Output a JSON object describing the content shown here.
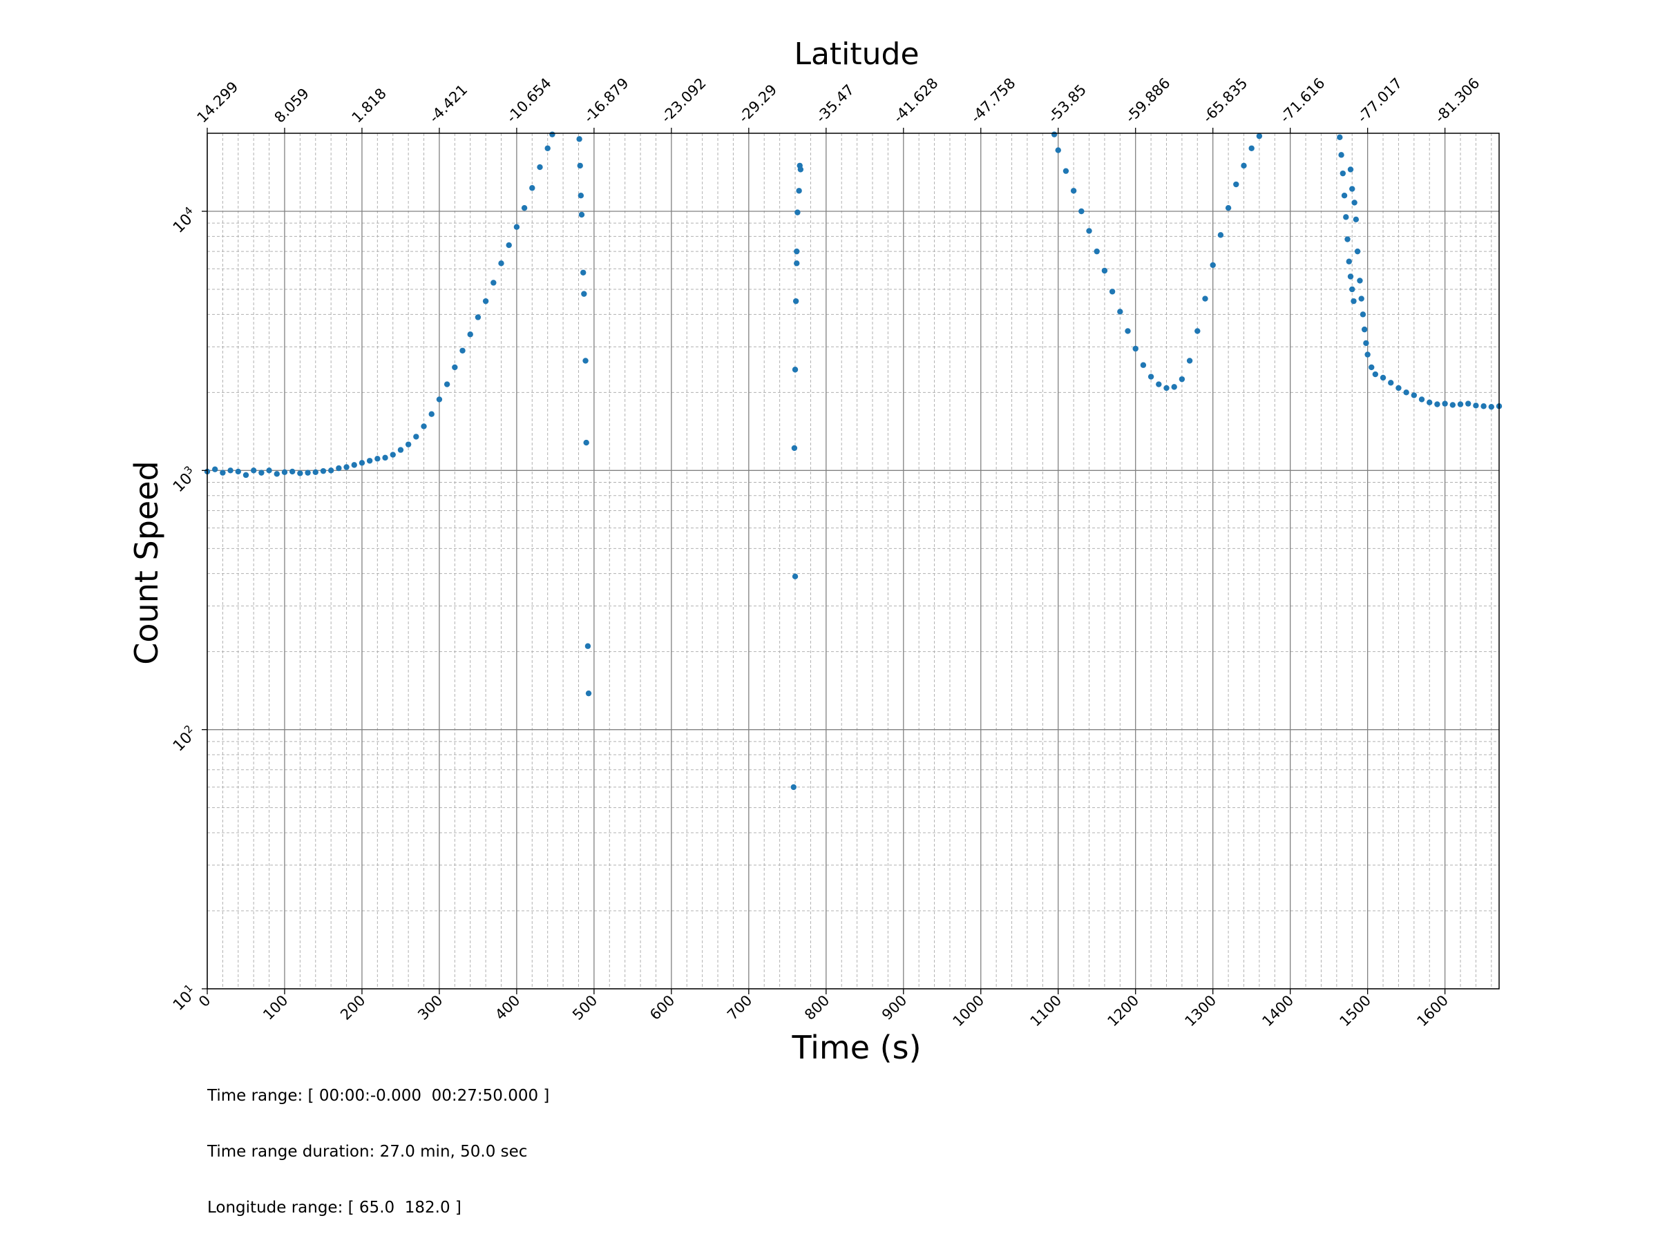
{
  "chart_data": {
    "type": "scatter",
    "title": "",
    "xlabel": "Time (s)",
    "ylabel": "Count Speed",
    "top_xlabel": "Latitude",
    "xlim": [
      0,
      1670
    ],
    "ylim": [
      10,
      20000
    ],
    "yscale": "log",
    "grid": true,
    "marker_color": "#1f77b4",
    "x_ticks": [
      0,
      100,
      200,
      300,
      400,
      500,
      600,
      700,
      800,
      900,
      1000,
      1100,
      1200,
      1300,
      1400,
      1500,
      1600
    ],
    "x_tick_labels": [
      "0",
      "100",
      "200",
      "300",
      "400",
      "500",
      "600",
      "700",
      "800",
      "900",
      "1000",
      "1100",
      "1200",
      "1300",
      "1400",
      "1500",
      "1600"
    ],
    "y_ticks": [
      10,
      100,
      1000,
      10000
    ],
    "y_tick_labels": [
      {
        "base": "10",
        "exp": "1"
      },
      {
        "base": "10",
        "exp": "2"
      },
      {
        "base": "10",
        "exp": "3"
      },
      {
        "base": "10",
        "exp": "4"
      }
    ],
    "top_ticks": [
      {
        "x": 0,
        "label": "14.299"
      },
      {
        "x": 100,
        "label": "8.059"
      },
      {
        "x": 200,
        "label": "1.818"
      },
      {
        "x": 300,
        "label": "-4.421"
      },
      {
        "x": 400,
        "label": "-10.654"
      },
      {
        "x": 500,
        "label": "-16.879"
      },
      {
        "x": 600,
        "label": "-23.092"
      },
      {
        "x": 700,
        "label": "-29.29"
      },
      {
        "x": 800,
        "label": "-35.47"
      },
      {
        "x": 900,
        "label": "-41.628"
      },
      {
        "x": 1000,
        "label": "-47.758"
      },
      {
        "x": 1100,
        "label": "-53.85"
      },
      {
        "x": 1200,
        "label": "-59.886"
      },
      {
        "x": 1300,
        "label": "-65.835"
      },
      {
        "x": 1400,
        "label": "-71.616"
      },
      {
        "x": 1500,
        "label": "-77.017"
      },
      {
        "x": 1600,
        "label": "-81.306"
      }
    ],
    "series": [
      {
        "points": [
          [
            0,
            990
          ],
          [
            10,
            1010
          ],
          [
            20,
            980
          ],
          [
            30,
            1000
          ],
          [
            40,
            990
          ],
          [
            50,
            960
          ],
          [
            60,
            1000
          ],
          [
            70,
            980
          ],
          [
            80,
            1000
          ],
          [
            90,
            970
          ],
          [
            100,
            985
          ],
          [
            110,
            990
          ],
          [
            120,
            975
          ],
          [
            130,
            980
          ],
          [
            140,
            985
          ],
          [
            150,
            995
          ],
          [
            160,
            1000
          ],
          [
            170,
            1020
          ],
          [
            180,
            1030
          ],
          [
            190,
            1050
          ],
          [
            200,
            1070
          ],
          [
            210,
            1090
          ],
          [
            220,
            1110
          ],
          [
            230,
            1120
          ],
          [
            240,
            1150
          ],
          [
            250,
            1200
          ],
          [
            260,
            1260
          ],
          [
            270,
            1350
          ],
          [
            280,
            1480
          ],
          [
            290,
            1650
          ],
          [
            300,
            1880
          ],
          [
            310,
            2150
          ],
          [
            320,
            2500
          ],
          [
            330,
            2900
          ],
          [
            340,
            3350
          ],
          [
            350,
            3900
          ],
          [
            360,
            4500
          ],
          [
            370,
            5300
          ],
          [
            380,
            6300
          ],
          [
            390,
            7400
          ],
          [
            400,
            8700
          ],
          [
            410,
            10300
          ],
          [
            420,
            12300
          ],
          [
            430,
            14800
          ],
          [
            440,
            17500
          ],
          [
            446,
            19800
          ],
          [
            481,
            19000
          ],
          [
            482,
            15000
          ],
          [
            483,
            11500
          ],
          [
            484,
            9700
          ],
          [
            486,
            5800
          ],
          [
            487,
            4800
          ],
          [
            489,
            2650
          ],
          [
            490,
            1280
          ],
          [
            492,
            210
          ],
          [
            493,
            138
          ],
          [
            759,
            1220
          ],
          [
            760,
            2450
          ],
          [
            761,
            4500
          ],
          [
            762,
            6300
          ],
          [
            762,
            7000
          ],
          [
            763,
            9900
          ],
          [
            765,
            12000
          ],
          [
            766,
            15000
          ],
          [
            767,
            14500
          ],
          [
            760,
            390
          ],
          [
            758,
            60
          ],
          [
            1095,
            19800
          ],
          [
            1100,
            17200
          ],
          [
            1110,
            14300
          ],
          [
            1120,
            12000
          ],
          [
            1130,
            10000
          ],
          [
            1140,
            8400
          ],
          [
            1150,
            7000
          ],
          [
            1160,
            5900
          ],
          [
            1170,
            4900
          ],
          [
            1180,
            4100
          ],
          [
            1190,
            3450
          ],
          [
            1200,
            2950
          ],
          [
            1210,
            2550
          ],
          [
            1220,
            2300
          ],
          [
            1230,
            2150
          ],
          [
            1240,
            2080
          ],
          [
            1250,
            2100
          ],
          [
            1260,
            2250
          ],
          [
            1270,
            2650
          ],
          [
            1280,
            3450
          ],
          [
            1290,
            4600
          ],
          [
            1300,
            6200
          ],
          [
            1310,
            8100
          ],
          [
            1320,
            10300
          ],
          [
            1330,
            12700
          ],
          [
            1340,
            15000
          ],
          [
            1350,
            17500
          ],
          [
            1360,
            19500
          ],
          [
            1464,
            19300
          ],
          [
            1466,
            16500
          ],
          [
            1468,
            14000
          ],
          [
            1470,
            11500
          ],
          [
            1472,
            9500
          ],
          [
            1474,
            7800
          ],
          [
            1476,
            6400
          ],
          [
            1478,
            5600
          ],
          [
            1480,
            5000
          ],
          [
            1482,
            4500
          ],
          [
            1478,
            14500
          ],
          [
            1480,
            12200
          ],
          [
            1483,
            10800
          ],
          [
            1485,
            9300
          ],
          [
            1487,
            7000
          ],
          [
            1490,
            5400
          ],
          [
            1492,
            4600
          ],
          [
            1494,
            4000
          ],
          [
            1496,
            3500
          ],
          [
            1498,
            3100
          ],
          [
            1500,
            2800
          ],
          [
            1505,
            2500
          ],
          [
            1510,
            2350
          ],
          [
            1520,
            2280
          ],
          [
            1530,
            2180
          ],
          [
            1540,
            2080
          ],
          [
            1550,
            2000
          ],
          [
            1560,
            1950
          ],
          [
            1570,
            1880
          ],
          [
            1580,
            1830
          ],
          [
            1590,
            1800
          ],
          [
            1600,
            1810
          ],
          [
            1610,
            1790
          ],
          [
            1620,
            1800
          ],
          [
            1630,
            1810
          ],
          [
            1640,
            1780
          ],
          [
            1650,
            1770
          ],
          [
            1660,
            1760
          ],
          [
            1670,
            1770
          ]
        ]
      }
    ]
  },
  "info": {
    "line1": "Time range: [ 00:00:-0.000  00:27:50.000 ]",
    "line2": "Time range duration: 27.0 min, 50.0 sec",
    "line3": "Longitude range: [ 65.0  182.0 ]"
  }
}
